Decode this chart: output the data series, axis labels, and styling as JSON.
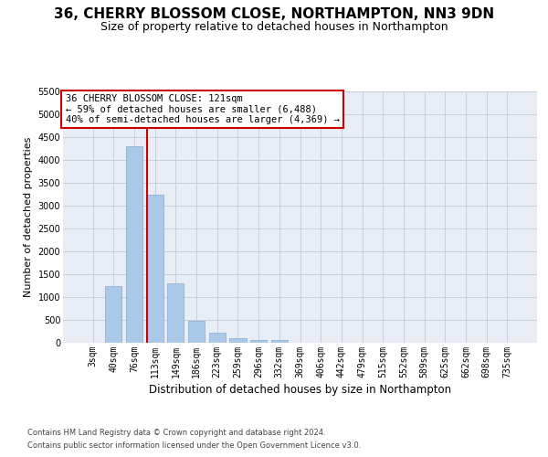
{
  "title": "36, CHERRY BLOSSOM CLOSE, NORTHAMPTON, NN3 9DN",
  "subtitle": "Size of property relative to detached houses in Northampton",
  "xlabel": "Distribution of detached houses by size in Northampton",
  "ylabel": "Number of detached properties",
  "footer_line1": "Contains HM Land Registry data © Crown copyright and database right 2024.",
  "footer_line2": "Contains public sector information licensed under the Open Government Licence v3.0.",
  "categories": [
    "3sqm",
    "40sqm",
    "76sqm",
    "113sqm",
    "149sqm",
    "186sqm",
    "223sqm",
    "259sqm",
    "296sqm",
    "332sqm",
    "369sqm",
    "406sqm",
    "442sqm",
    "479sqm",
    "515sqm",
    "552sqm",
    "589sqm",
    "625sqm",
    "662sqm",
    "698sqm",
    "735sqm"
  ],
  "values": [
    0,
    1250,
    4300,
    3250,
    1300,
    480,
    230,
    110,
    70,
    70,
    0,
    0,
    0,
    0,
    0,
    0,
    0,
    0,
    0,
    0,
    0
  ],
  "bar_color": "#aac8e8",
  "bar_edge_color": "#88aacc",
  "vline_x_index": 2.62,
  "vline_color": "#cc0000",
  "annotation_title": "36 CHERRY BLOSSOM CLOSE: 121sqm",
  "annotation_line2": "← 59% of detached houses are smaller (6,488)",
  "annotation_line3": "40% of semi-detached houses are larger (4,369) →",
  "annotation_box_facecolor": "#ffffff",
  "annotation_box_edgecolor": "#cc0000",
  "ylim": [
    0,
    5500
  ],
  "yticks": [
    0,
    500,
    1000,
    1500,
    2000,
    2500,
    3000,
    3500,
    4000,
    4500,
    5000,
    5500
  ],
  "grid_color": "#c8cce0",
  "axes_facecolor": "#e8edf5",
  "title_fontsize": 11,
  "subtitle_fontsize": 9,
  "ylabel_fontsize": 8,
  "xlabel_fontsize": 8.5,
  "tick_fontsize": 7,
  "annotation_fontsize": 7.5,
  "footer_fontsize": 6
}
